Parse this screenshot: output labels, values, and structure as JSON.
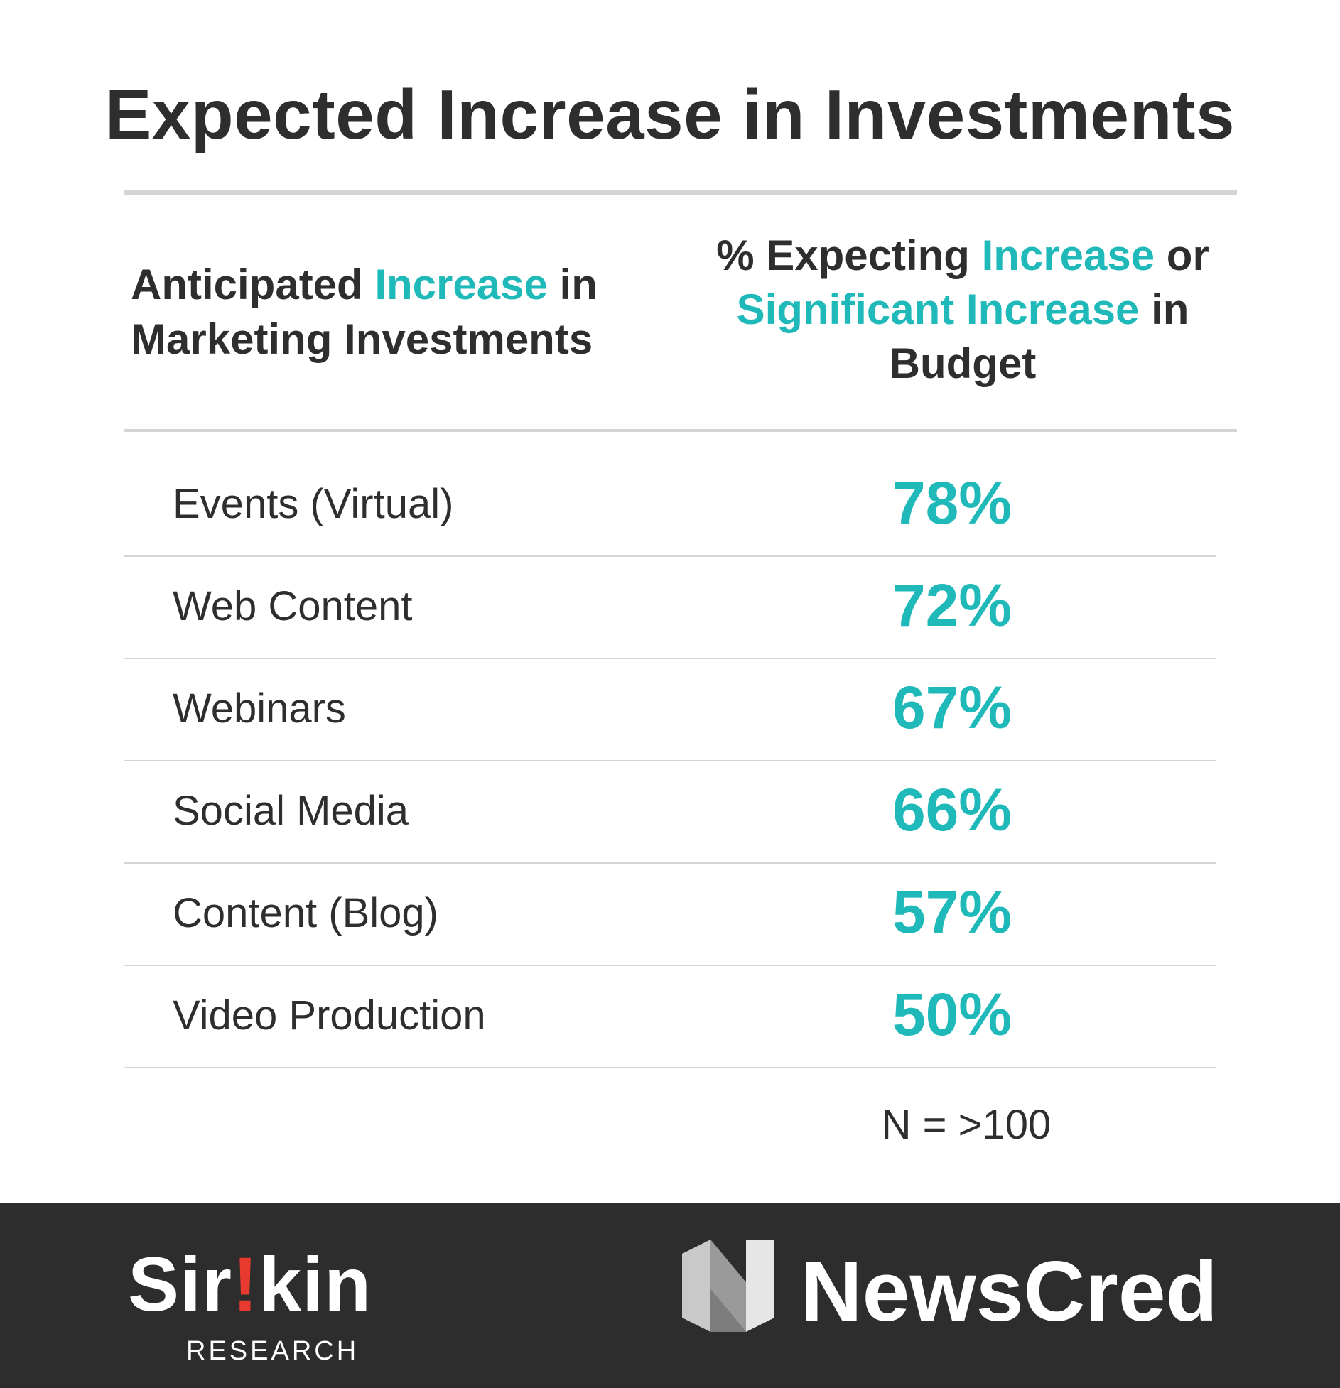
{
  "title": "Expected Increase in Investments",
  "header": {
    "left": [
      {
        "text": "Anticipated ",
        "accent": false
      },
      {
        "text": "Increase",
        "accent": true
      },
      {
        "text": " in Marketing Investments",
        "accent": false
      }
    ],
    "right": [
      {
        "text": "% Expecting ",
        "accent": false
      },
      {
        "text": "Increase",
        "accent": true
      },
      {
        "text": " or ",
        "accent": false
      },
      {
        "text": "Significant Increase",
        "accent": true
      },
      {
        "text": " in Budget",
        "accent": false
      }
    ]
  },
  "colors": {
    "accent": "#20b9b9",
    "text": "#2e2e2e",
    "rule": "#d4d4d4",
    "footer": "#2d2d2d",
    "sirkin_red": "#e83a2f"
  },
  "chart_data": {
    "type": "table",
    "title": "Expected Increase in Investments",
    "columns": [
      "Anticipated Increase in Marketing Investments",
      "% Expecting Increase or Significant Increase in Budget"
    ],
    "rows": [
      {
        "category": "Events (Virtual)",
        "value": "78%"
      },
      {
        "category": "Web Content",
        "value": "72%"
      },
      {
        "category": "Webinars",
        "value": "67%"
      },
      {
        "category": "Social Media",
        "value": "66%"
      },
      {
        "category": "Content (Blog)",
        "value": "57%"
      },
      {
        "category": "Video Production",
        "value": "50%"
      }
    ],
    "note": "N = >100"
  },
  "footer": {
    "sirkin": {
      "pre": "Sir",
      "bang": "!",
      "post": "kin",
      "sub": "RESEARCH"
    },
    "newscred": {
      "name": "NewsCred",
      "icon": "newscred-logo-icon"
    }
  }
}
